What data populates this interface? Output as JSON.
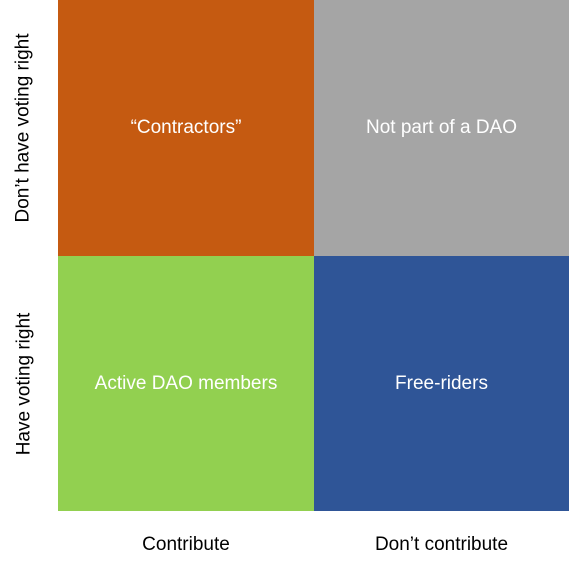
{
  "quadrants": {
    "top_left": {
      "label": "“Contractors”",
      "color": "#c55a11"
    },
    "top_right": {
      "label": "Not part of a DAO",
      "color": "#a5a5a5"
    },
    "bottom_left": {
      "label": "Active DAO members",
      "color": "#92d050"
    },
    "bottom_right": {
      "label": "Free-riders",
      "color": "#2f5597"
    }
  },
  "axes": {
    "y_top": "Don’t have voting right",
    "y_bottom": "Have voting right",
    "x_left": "Contribute",
    "x_right": "Don’t contribute"
  }
}
